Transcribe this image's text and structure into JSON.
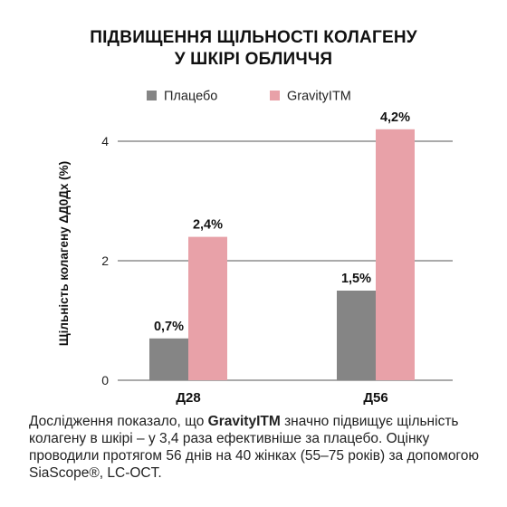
{
  "title_lines": [
    "ПІДВИЩЕННЯ ЩІЛЬНОСТІ КОЛАГЕНУ",
    "У ШКІРІ ОБЛИЧЧЯ"
  ],
  "chart_data": {
    "type": "bar",
    "categories": [
      "Д28",
      "Д56"
    ],
    "series": [
      {
        "name": "Плацебо",
        "values": [
          0.7,
          1.5
        ],
        "labels": [
          "0,7%",
          "1,5%"
        ],
        "color": "#858585"
      },
      {
        "name": "GravityITM",
        "values": [
          2.4,
          4.2
        ],
        "labels": [
          "2,4%",
          "4,2%"
        ],
        "color": "#e8a1a8"
      }
    ],
    "ylabel": "Щільність колагену ΔД0Дх (%)",
    "ylim": [
      0,
      4.2
    ],
    "yticks": [
      0,
      2,
      4
    ],
    "ytick_labels": [
      "0",
      "2",
      "4"
    ],
    "grid": true,
    "legend": "top"
  },
  "caption": {
    "before": "Дослідження показало, що ",
    "brand": "GravityITM",
    "after": " значно підвищує щільність колагену в шкірі – у 3,4 раза ефективніше за плацебо. Оцінку проводили протягом 56 днів на 40 жінках (55–75 років) за допомогою SiaScope®, LC-OCT."
  }
}
